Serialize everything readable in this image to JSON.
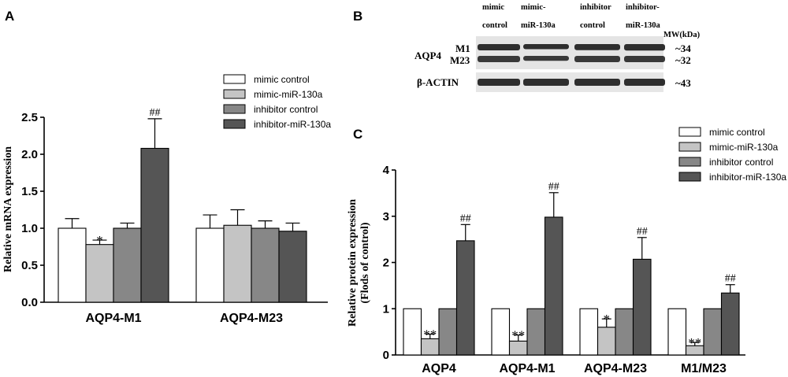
{
  "colors": {
    "series": [
      "#ffffff",
      "#c4c4c4",
      "#878787",
      "#555555"
    ],
    "stroke": "#000000",
    "blot_band": "#1a1a1a",
    "blot_bg": "#e4e4e4"
  },
  "panel_a": {
    "letter": "A",
    "chart_data": {
      "type": "bar",
      "ylabel": "Relative mRNA expression",
      "ylim": [
        0,
        2.5
      ],
      "yticks": [
        "0.0",
        "0.5",
        "1.0",
        "1.5",
        "2.0",
        "2.5"
      ],
      "categories": [
        "AQP4-M1",
        "AQP4-M23"
      ],
      "series": [
        {
          "name": "mimic control",
          "values": [
            1.0,
            1.0
          ],
          "errors": [
            0.13,
            0.18
          ]
        },
        {
          "name": "mimic-miR-130a",
          "values": [
            0.78,
            1.04
          ],
          "errors": [
            0.06,
            0.21
          ]
        },
        {
          "name": "inhibitor control",
          "values": [
            1.0,
            1.0
          ],
          "errors": [
            0.07,
            0.1
          ]
        },
        {
          "name": "inhibitor-miR-130a",
          "values": [
            2.08,
            0.96
          ],
          "errors": [
            0.4,
            0.11
          ]
        }
      ],
      "annotations": [
        {
          "category": 0,
          "series": 1,
          "text": "*"
        },
        {
          "category": 0,
          "series": 3,
          "text": "##"
        }
      ],
      "legend_position": "top-right"
    }
  },
  "panel_b": {
    "letter": "B",
    "lanes": [
      {
        "line1": "mimic",
        "line2": "control"
      },
      {
        "line1": "mimic-",
        "line2": "miR-130a"
      },
      {
        "line1": "inhibitor",
        "line2": "control"
      },
      {
        "line1": "inhibitor-",
        "line2": "miR-130a"
      }
    ],
    "mw_header": "MW(kDa)",
    "protein_label": "AQP4",
    "isoform_m1": "M1",
    "isoform_m23": "M23",
    "actin_label": "β-ACTIN",
    "mw_m1": "~34",
    "mw_m23": "~32",
    "mw_actin": "~43"
  },
  "panel_c": {
    "letter": "C",
    "chart_data": {
      "type": "bar",
      "ylabel_line1": "Relative protein expression",
      "ylabel_line2": "(Flods of control)",
      "ylim": [
        0,
        4
      ],
      "yticks": [
        "0",
        "1",
        "2",
        "3",
        "4"
      ],
      "categories": [
        "AQP4",
        "AQP4-M1",
        "AQP4-M23",
        "M1/M23"
      ],
      "series": [
        {
          "name": "mimic control",
          "values": [
            1.0,
            1.0,
            1.0,
            1.0
          ],
          "errors": [
            0,
            0,
            0,
            0
          ]
        },
        {
          "name": "mimic-miR-130a",
          "values": [
            0.35,
            0.3,
            0.6,
            0.2
          ],
          "errors": [
            0.1,
            0.13,
            0.18,
            0.07
          ]
        },
        {
          "name": "inhibitor control",
          "values": [
            1.0,
            1.0,
            1.0,
            1.0
          ],
          "errors": [
            0,
            0,
            0,
            0
          ]
        },
        {
          "name": "inhibitor-miR-130a",
          "values": [
            2.47,
            2.98,
            2.07,
            1.34
          ],
          "errors": [
            0.35,
            0.53,
            0.47,
            0.18
          ]
        }
      ],
      "annotations": [
        {
          "category": 0,
          "series": 1,
          "text": "**"
        },
        {
          "category": 0,
          "series": 3,
          "text": "##"
        },
        {
          "category": 1,
          "series": 1,
          "text": "**"
        },
        {
          "category": 1,
          "series": 3,
          "text": "##"
        },
        {
          "category": 2,
          "series": 1,
          "text": "*"
        },
        {
          "category": 2,
          "series": 3,
          "text": "##"
        },
        {
          "category": 3,
          "series": 1,
          "text": "**"
        },
        {
          "category": 3,
          "series": 3,
          "text": "##"
        }
      ],
      "legend_position": "top-right"
    }
  }
}
